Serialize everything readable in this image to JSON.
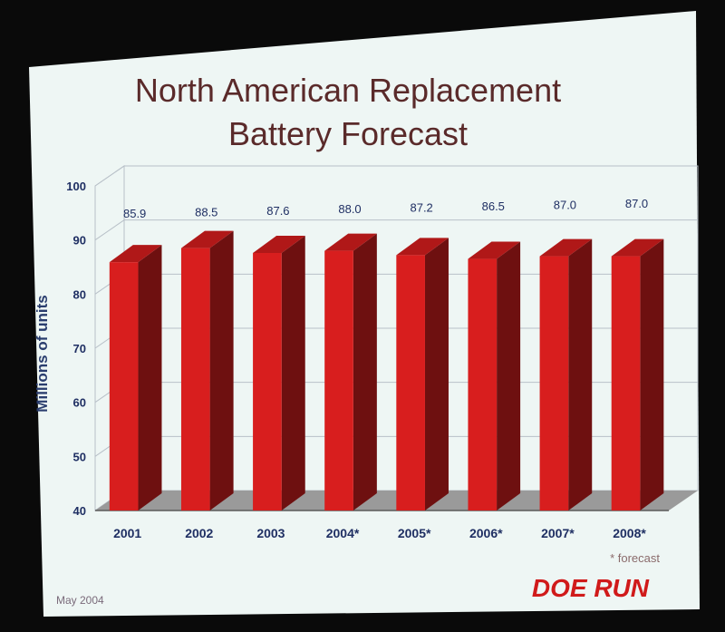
{
  "slide": {
    "title_line1": "North American Replacement",
    "title_line2": "Battery Forecast",
    "footnote": "* forecast",
    "footer_date": "May 2004",
    "logo": "DOE RUN"
  },
  "colors": {
    "slide_bg": "#eef6f4",
    "bar_front": "#d81e1e",
    "bar_side": "#6e1010",
    "bar_top": "#b01818",
    "axis_text": "#1f2f63",
    "grid": "#b8c0c8",
    "floor": "#9a9a9a"
  },
  "chart_data": {
    "type": "bar",
    "title": "North American Replacement Battery Forecast",
    "xlabel": "",
    "ylabel": "Millions of units",
    "ylim": [
      40,
      100
    ],
    "yticks": [
      40,
      50,
      60,
      70,
      80,
      90,
      100
    ],
    "categories": [
      "2001",
      "2002",
      "2003",
      "2004*",
      "2005*",
      "2006*",
      "2007*",
      "2008*"
    ],
    "values": [
      85.9,
      88.5,
      87.6,
      88.0,
      87.2,
      86.5,
      87.0,
      87.0
    ],
    "data_labels": [
      "85.9",
      "88.5",
      "87.6",
      "88.0",
      "87.2",
      "86.5",
      "87.0",
      "87.0"
    ],
    "grid": true,
    "style": "3d"
  }
}
